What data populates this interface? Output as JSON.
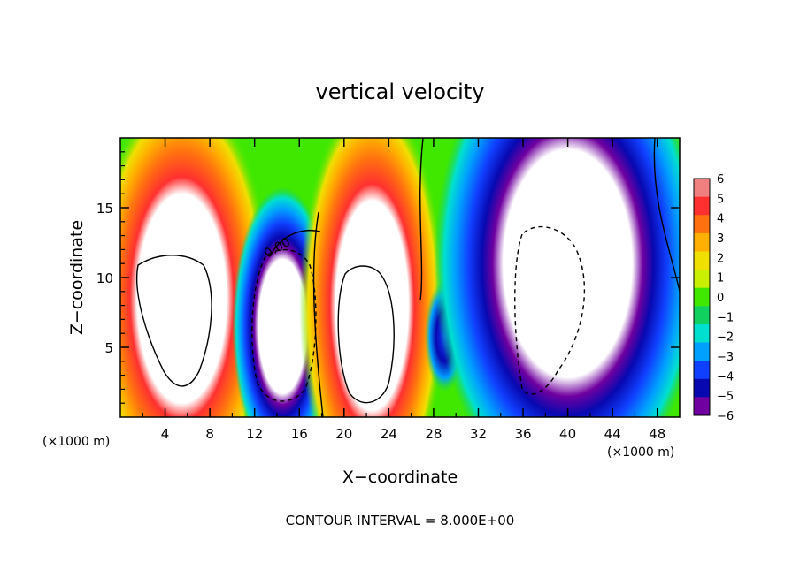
{
  "chart_data": {
    "type": "heatmap",
    "title": "vertical velocity",
    "xlabel": "X−coordinate",
    "ylabel": "Z−coordinate",
    "x_unit_label": "(×1000 m)",
    "x_unit_label_right": "(×1000 m)",
    "x_ticks": [
      "4",
      "8",
      "12",
      "16",
      "20",
      "24",
      "28",
      "32",
      "36",
      "40",
      "44",
      "48"
    ],
    "y_ticks": [
      "5",
      "10",
      "15"
    ],
    "xlim": [
      0,
      50
    ],
    "ylim": [
      0,
      20
    ],
    "footer": "CONTOUR INTERVAL = 8.000E+00",
    "contour_label": "0.00",
    "colorbar": {
      "labels": [
        "6",
        "5",
        "4",
        "3",
        "2",
        "1",
        "0",
        "−1",
        "−2",
        "−3",
        "−4",
        "−5",
        "−6"
      ],
      "range": [
        -6,
        6
      ],
      "colors": [
        "#f08080",
        "#ff3030",
        "#ff7010",
        "#ffb000",
        "#f0e000",
        "#c8f000",
        "#40e800",
        "#10d060",
        "#00e0d0",
        "#00a0ff",
        "#1040ff",
        "#0808b0",
        "#7000a0"
      ]
    },
    "cells": [
      {
        "x": 5.5,
        "z": 8.5,
        "w": 8,
        "h": 15,
        "value": 12,
        "sign": "up"
      },
      {
        "x": 14.5,
        "z": 6.5,
        "w": 4.5,
        "h": 10,
        "value": -12,
        "sign": "down"
      },
      {
        "x": 22.5,
        "z": 8,
        "w": 6.5,
        "h": 15,
        "value": 12,
        "sign": "up"
      },
      {
        "x": 29,
        "z": 5.8,
        "w": 1.8,
        "h": 4,
        "value": -5,
        "sign": "down"
      },
      {
        "x": 40,
        "z": 11,
        "w": 12,
        "h": 17,
        "value": -12,
        "sign": "down"
      }
    ]
  }
}
